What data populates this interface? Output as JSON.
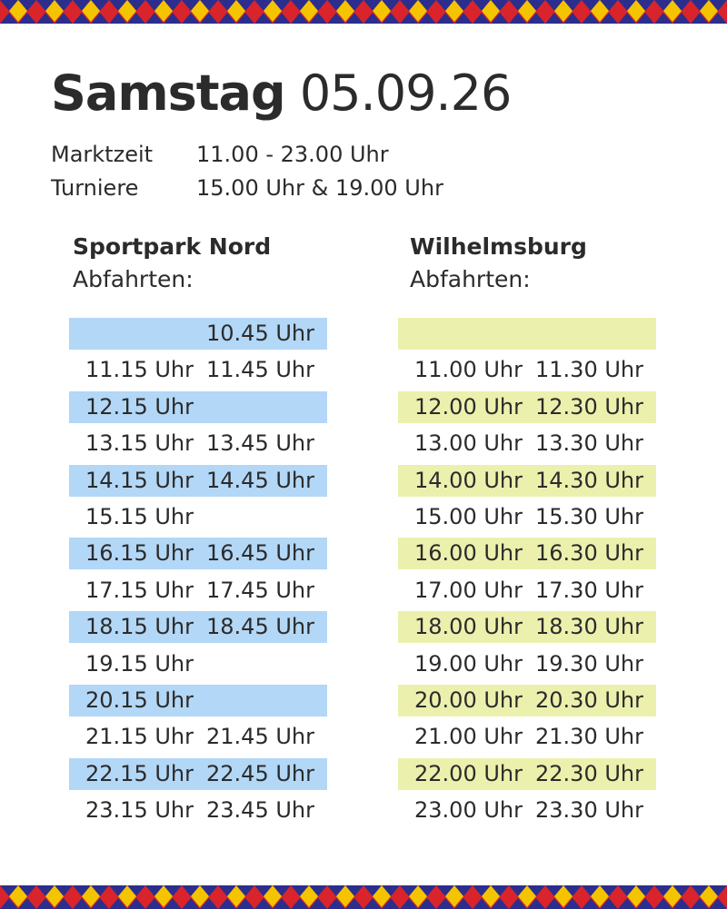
{
  "title": {
    "day": "Samstag",
    "date": "05.09.26"
  },
  "info": [
    {
      "label": "Marktzeit",
      "value": "11.00 - 23.00 Uhr"
    },
    {
      "label": "Turniere",
      "value": "15.00 Uhr & 19.00 Uhr"
    }
  ],
  "colors": {
    "left_band": "#b3d7f6",
    "right_band": "#ecf0ad",
    "border_blue": "#2b2e8c",
    "border_red": "#d8242a",
    "border_yellow": "#f4c400"
  },
  "sportpark": {
    "name": "Sportpark Nord",
    "sub": "Abfahrten:",
    "rows": [
      {
        "a": "",
        "b": "10.45 Uhr",
        "band": true
      },
      {
        "a": "11.15 Uhr",
        "b": "11.45 Uhr",
        "band": false
      },
      {
        "a": "12.15 Uhr",
        "b": "",
        "band": true
      },
      {
        "a": "13.15 Uhr",
        "b": "13.45 Uhr",
        "band": false
      },
      {
        "a": "14.15 Uhr",
        "b": "14.45 Uhr",
        "band": true
      },
      {
        "a": "15.15 Uhr",
        "b": "",
        "band": false
      },
      {
        "a": "16.15 Uhr",
        "b": "16.45 Uhr",
        "band": true
      },
      {
        "a": "17.15 Uhr",
        "b": "17.45 Uhr",
        "band": false
      },
      {
        "a": "18.15 Uhr",
        "b": "18.45 Uhr",
        "band": true
      },
      {
        "a": "19.15 Uhr",
        "b": "",
        "band": false
      },
      {
        "a": "20.15 Uhr",
        "b": "",
        "band": true
      },
      {
        "a": "21.15 Uhr",
        "b": "21.45 Uhr",
        "band": false
      },
      {
        "a": "22.15 Uhr",
        "b": "22.45 Uhr",
        "band": true
      },
      {
        "a": "23.15 Uhr",
        "b": "23.45 Uhr",
        "band": false
      }
    ]
  },
  "wilhelmsburg": {
    "name": "Wilhelmsburg",
    "sub": "Abfahrten:",
    "rows": [
      {
        "a": "",
        "b": "",
        "band": true
      },
      {
        "a": "11.00 Uhr",
        "b": "11.30 Uhr",
        "band": false
      },
      {
        "a": "12.00 Uhr",
        "b": "12.30 Uhr",
        "band": true
      },
      {
        "a": "13.00 Uhr",
        "b": "13.30 Uhr",
        "band": false
      },
      {
        "a": "14.00 Uhr",
        "b": "14.30 Uhr",
        "band": true
      },
      {
        "a": "15.00 Uhr",
        "b": "15.30 Uhr",
        "band": false
      },
      {
        "a": "16.00 Uhr",
        "b": "16.30 Uhr",
        "band": true
      },
      {
        "a": "17.00 Uhr",
        "b": "17.30 Uhr",
        "band": false
      },
      {
        "a": "18.00 Uhr",
        "b": "18.30 Uhr",
        "band": true
      },
      {
        "a": "19.00 Uhr",
        "b": "19.30 Uhr",
        "band": false
      },
      {
        "a": "20.00 Uhr",
        "b": "20.30 Uhr",
        "band": true
      },
      {
        "a": "21.00 Uhr",
        "b": "21.30 Uhr",
        "band": false
      },
      {
        "a": "22.00 Uhr",
        "b": "22.30 Uhr",
        "band": true
      },
      {
        "a": "23.00 Uhr",
        "b": "23.30 Uhr",
        "band": false
      }
    ]
  }
}
